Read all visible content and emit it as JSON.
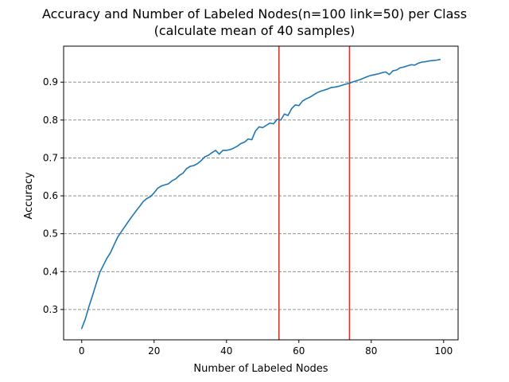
{
  "chart_data": {
    "type": "line",
    "title": "Accuracy and Number of Labeled Nodes(n=100 link=50) per Class",
    "subtitle": "(calculate mean of 40 samples)",
    "xlabel": "Number of Labeled Nodes",
    "ylabel": "Accuracy",
    "xlim": [
      -5,
      104
    ],
    "ylim": [
      0.22,
      0.995
    ],
    "xticks": [
      0,
      20,
      40,
      60,
      80,
      100
    ],
    "yticks": [
      0.3,
      0.4,
      0.5,
      0.6,
      0.7,
      0.8,
      0.9
    ],
    "xtick_labels": [
      "0",
      "20",
      "40",
      "60",
      "80",
      "100"
    ],
    "ytick_labels": [
      "0.3",
      "0.4",
      "0.5",
      "0.6",
      "0.7",
      "0.8",
      "0.9"
    ],
    "grid": {
      "axis": "y",
      "style": "dashed",
      "color": "#808080"
    },
    "series": [
      {
        "color": "#1f77b4",
        "x": [
          0,
          1,
          2,
          3,
          4,
          5,
          6,
          7,
          8,
          9,
          10,
          11,
          12,
          13,
          14,
          15,
          16,
          17,
          18,
          19,
          20,
          21,
          22,
          23,
          24,
          25,
          26,
          27,
          28,
          29,
          30,
          31,
          32,
          33,
          34,
          35,
          36,
          37,
          38,
          39,
          40,
          41,
          42,
          43,
          44,
          45,
          46,
          47,
          48,
          49,
          50,
          51,
          52,
          53,
          54,
          55,
          56,
          57,
          58,
          59,
          60,
          61,
          62,
          63,
          64,
          65,
          66,
          67,
          68,
          69,
          70,
          71,
          72,
          73,
          74,
          75,
          76,
          77,
          78,
          79,
          80,
          81,
          82,
          83,
          84,
          85,
          86,
          87,
          88,
          89,
          90,
          91,
          92,
          93,
          94,
          95,
          96,
          97,
          98,
          99
        ],
        "y": [
          0.25,
          0.275,
          0.308,
          0.337,
          0.368,
          0.398,
          0.417,
          0.436,
          0.451,
          0.472,
          0.492,
          0.506,
          0.52,
          0.534,
          0.547,
          0.56,
          0.572,
          0.585,
          0.593,
          0.598,
          0.608,
          0.62,
          0.626,
          0.629,
          0.632,
          0.64,
          0.645,
          0.654,
          0.66,
          0.672,
          0.678,
          0.68,
          0.685,
          0.693,
          0.703,
          0.707,
          0.714,
          0.72,
          0.71,
          0.72,
          0.72,
          0.722,
          0.726,
          0.731,
          0.738,
          0.742,
          0.75,
          0.748,
          0.771,
          0.782,
          0.78,
          0.786,
          0.792,
          0.79,
          0.802,
          0.8,
          0.816,
          0.812,
          0.83,
          0.84,
          0.838,
          0.85,
          0.856,
          0.86,
          0.866,
          0.872,
          0.876,
          0.879,
          0.882,
          0.886,
          0.887,
          0.889,
          0.892,
          0.895,
          0.897,
          0.901,
          0.904,
          0.907,
          0.911,
          0.915,
          0.918,
          0.92,
          0.922,
          0.925,
          0.927,
          0.92,
          0.93,
          0.932,
          0.938,
          0.94,
          0.943,
          0.946,
          0.945,
          0.95,
          0.953,
          0.954,
          0.956,
          0.957,
          0.958,
          0.96
        ]
      }
    ],
    "vertical_lines": [
      {
        "x": 54.5,
        "color": "#e0301e"
      },
      {
        "x": 74,
        "color": "#e0301e"
      }
    ]
  }
}
